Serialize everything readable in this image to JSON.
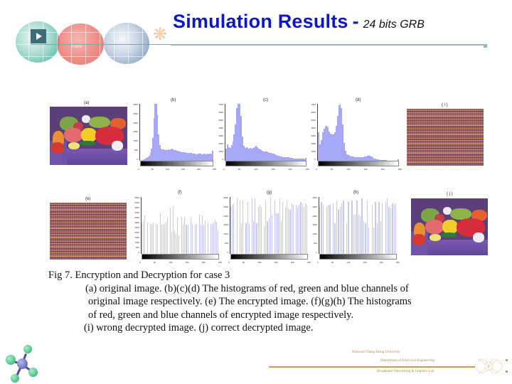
{
  "slide": {
    "title": "Simulation Results",
    "title_separator": "-",
    "subtitle": "24 bits GRB",
    "header_art_label": "ITMOF"
  },
  "figure": {
    "panels": [
      {
        "id": "a",
        "label": "(a)",
        "kind": "photo",
        "description": "original image (peppers)"
      },
      {
        "id": "b",
        "label": "(b)",
        "kind": "histogram",
        "channel": "red",
        "source": "original"
      },
      {
        "id": "c",
        "label": "(c)",
        "kind": "histogram",
        "channel": "green",
        "source": "original"
      },
      {
        "id": "d",
        "label": "(d)",
        "kind": "histogram",
        "channel": "blue",
        "source": "original"
      },
      {
        "id": "i",
        "label": "( i )",
        "kind": "scrambled",
        "description": "wrong decrypted image"
      },
      {
        "id": "e",
        "label": "(e)",
        "kind": "scrambled",
        "description": "encrypted image"
      },
      {
        "id": "f",
        "label": "(f)",
        "kind": "histogram",
        "channel": "red",
        "source": "encrypted"
      },
      {
        "id": "g",
        "label": "(g)",
        "kind": "histogram",
        "channel": "green",
        "source": "encrypted"
      },
      {
        "id": "h",
        "label": "(h)",
        "kind": "histogram",
        "channel": "blue",
        "source": "encrypted"
      },
      {
        "id": "j",
        "label": "( j )",
        "kind": "photo",
        "description": "correct decrypted image (peppers)"
      }
    ]
  },
  "chart_data": [
    {
      "type": "bar",
      "title": "(b)",
      "xlabel": "",
      "ylabel": "",
      "xlim": [
        0,
        250
      ],
      "x_ticks": [
        "0",
        "50",
        "100",
        "150",
        "200",
        "250"
      ],
      "y_ticks": [
        "0",
        "500",
        "1000",
        "1500",
        "2000",
        "2500",
        "3000"
      ],
      "ylim": [
        0,
        3200
      ],
      "values": [
        20,
        40,
        60,
        80,
        110,
        150,
        200,
        300,
        450,
        700,
        1300,
        2400,
        3300,
        3300,
        2600,
        1500,
        900,
        700,
        650,
        640,
        620,
        610,
        600,
        640,
        620,
        650,
        670,
        640,
        620,
        600,
        560,
        580,
        540,
        520,
        500,
        480,
        470,
        500,
        460,
        440,
        420,
        460,
        440,
        420,
        400,
        420,
        380,
        380,
        400,
        400,
        390,
        380,
        380,
        400,
        380,
        420,
        380,
        410,
        400,
        380,
        560
      ]
    },
    {
      "type": "bar",
      "title": "(c)",
      "xlabel": "",
      "ylabel": "",
      "xlim": [
        0,
        250
      ],
      "x_ticks": [
        "0",
        "50",
        "100",
        "150",
        "200",
        "250"
      ],
      "y_ticks": [
        "0",
        "1000",
        "2000",
        "3000",
        "4000",
        "5000",
        "6000",
        "7000"
      ],
      "ylim": [
        0,
        7000
      ],
      "values": [
        1500,
        2000,
        1700,
        1600,
        1900,
        2400,
        3200,
        4500,
        6500,
        7000,
        7000,
        5500,
        3000,
        1800,
        1600,
        1700,
        1600,
        1500,
        1550,
        1500,
        1600,
        1700,
        1800,
        1650,
        1500,
        1400,
        1300,
        1200,
        1150,
        1100,
        1100,
        1050,
        1000,
        950,
        900,
        850,
        800,
        700,
        650,
        600,
        550,
        500,
        480,
        450,
        430,
        420,
        400,
        380,
        350,
        320,
        300,
        300,
        280,
        270,
        260,
        250,
        240,
        230,
        220,
        350
      ]
    },
    {
      "type": "bar",
      "title": "(d)",
      "xlabel": "",
      "ylabel": "",
      "xlim": [
        0,
        250
      ],
      "x_ticks": [
        "0",
        "50",
        "100",
        "150",
        "200",
        "250"
      ],
      "y_ticks": [
        "0",
        "1000",
        "2000",
        "3000",
        "4000",
        "5000",
        "6000",
        "7000"
      ],
      "ylim": [
        0,
        7000
      ],
      "values": [
        3500,
        2000,
        2500,
        3500,
        3900,
        4200,
        4300,
        4100,
        3600,
        3300,
        3200,
        3250,
        3500,
        4300,
        5500,
        6800,
        7000,
        6500,
        4500,
        2200,
        1200,
        800,
        700,
        600,
        550,
        520,
        500,
        480,
        470,
        460,
        450,
        460,
        470,
        480,
        500,
        520,
        600,
        700,
        650,
        500,
        400,
        300,
        250,
        200,
        150,
        120,
        100,
        80,
        70,
        60,
        50,
        40,
        40,
        30,
        30,
        30,
        30,
        30,
        30,
        200
      ]
    },
    {
      "type": "bar",
      "title": "(f)",
      "xlabel": "",
      "ylabel": "",
      "xlim": [
        0,
        250
      ],
      "x_ticks": [
        "0",
        "50",
        "100",
        "150",
        "200",
        "250"
      ],
      "y_ticks": [
        "0",
        "500",
        "1000",
        "1500",
        "2000",
        "2500",
        "3000",
        "3500",
        "4000",
        "4500",
        "5000",
        "5500"
      ],
      "ylim": [
        0,
        5500
      ],
      "values": [
        3000,
        3200,
        3700,
        0,
        3000,
        0,
        2900,
        2900,
        3000,
        0,
        2900,
        2900,
        0,
        3900,
        2800,
        2900,
        2900,
        3100,
        3500,
        0,
        4500,
        2100,
        4600,
        2200,
        1900,
        3500,
        1800,
        0,
        3600,
        2800,
        3600,
        2800,
        2800,
        0,
        3500,
        2800,
        0,
        2900,
        2900,
        0,
        3800,
        2800,
        3700,
        2800,
        3200,
        0,
        3000,
        0,
        2900,
        2900,
        3000,
        3300,
        3100,
        2300
      ]
    },
    {
      "type": "bar",
      "title": "(g)",
      "xlabel": "",
      "ylabel": "",
      "xlim": [
        0,
        250
      ],
      "x_ticks": [
        "0",
        "50",
        "100",
        "150",
        "200",
        "250"
      ],
      "y_ticks": [
        "0",
        "500",
        "1000",
        "1500",
        "2000",
        "2500",
        "3000"
      ],
      "ylim": [
        0,
        3500
      ],
      "values": [
        2900,
        3000,
        3100,
        0,
        3400,
        0,
        3300,
        1900,
        3300,
        0,
        1900,
        3200,
        1850,
        0,
        3400,
        2000,
        3400,
        1900,
        2900,
        3000,
        2900,
        0,
        1700,
        3300,
        2000,
        2200,
        3400,
        2400,
        0,
        3300,
        2500,
        2500,
        3400,
        2000,
        3200,
        0,
        2900,
        3300,
        2800,
        2700,
        3100,
        3000,
        0,
        3000,
        2900,
        3000,
        3200,
        3100,
        2900,
        3100,
        3000
      ]
    },
    {
      "type": "bar",
      "title": "(h)",
      "xlabel": "",
      "ylabel": "",
      "xlim": [
        0,
        250
      ],
      "x_ticks": [
        "0",
        "50",
        "100",
        "150",
        "200",
        "250"
      ],
      "y_ticks": [
        "0",
        "500",
        "1000",
        "1500",
        "2000",
        "2500",
        "3000"
      ],
      "ylim": [
        0,
        3500
      ],
      "values": [
        2900,
        3200,
        3000,
        0,
        2900,
        3000,
        3000,
        0,
        3100,
        1900,
        3300,
        2700,
        2900,
        3100,
        3300,
        0,
        1900,
        3200,
        0,
        3300,
        2400,
        2400,
        3300,
        2400,
        2300,
        3400,
        2000,
        1900,
        3300,
        1600,
        0,
        3000,
        1600,
        3200,
        1900,
        3200,
        2000,
        3100,
        0,
        3200,
        3400,
        2900,
        2800,
        3100,
        3000,
        3100
      ]
    }
  ],
  "caption": {
    "line1": "Fig 7. Encryption and Decryption for case 3",
    "line2": "(a) original image. (b)(c)(d) The histograms of red, green and blue channels of",
    "line3": "original image respectively. (e) The encrypted image. (f)(g)(h) The histograms",
    "line4": "of red, green and blue channels of encrypted image respectively.",
    "line5": "(i) wrong decrypted image. (j) correct decrypted image."
  },
  "footer": {
    "university": "National Chung Hsing University",
    "department": "Department of Electrical Engineering",
    "lab": "Broadband Networking & Graphics Lab"
  },
  "colors": {
    "title": "#0d17c8",
    "histogram_bar": "#a7a8f5",
    "footer_accent": "#d39a4c"
  }
}
